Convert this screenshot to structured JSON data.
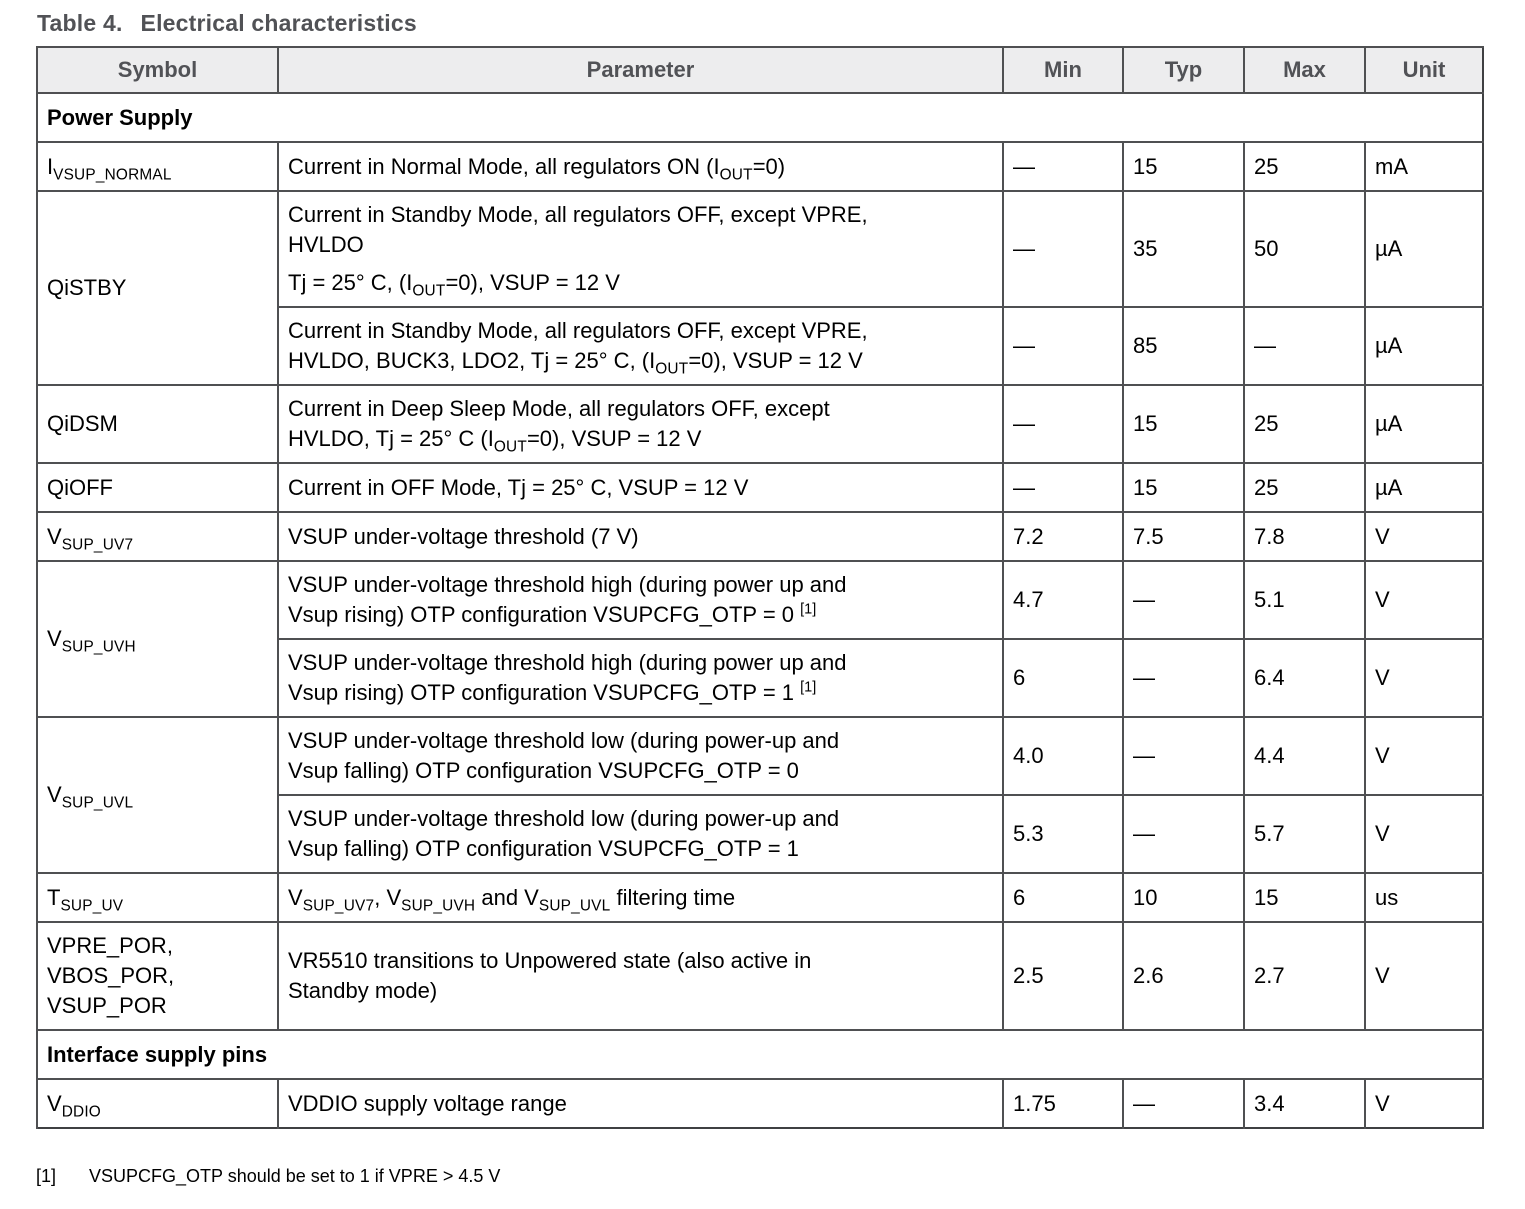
{
  "title": {
    "label": "Table 4.",
    "text": "Electrical characteristics"
  },
  "table": {
    "columns": [
      "Symbol",
      "Parameter",
      "Min",
      "Typ",
      "Max",
      "Unit"
    ],
    "rows": [
      {
        "section": "Power Supply"
      },
      {
        "symbol": [
          [
            {
              "t": "I"
            },
            {
              "sub": "VSUP_NORMAL"
            }
          ]
        ],
        "rowspan": 1,
        "parameter": [
          [
            {
              "t": "Current in Normal Mode, all regulators ON (I"
            },
            {
              "sub": "OUT"
            },
            {
              "t": "=0)"
            }
          ]
        ],
        "min": "—",
        "typ": "15",
        "max": "25",
        "unit": "mA"
      },
      {
        "symbol": [
          [
            {
              "t": "QiSTBY"
            }
          ]
        ],
        "rowspan": 2,
        "parameter": [
          [
            {
              "t": "Current in Standby Mode, all regulators OFF, except VPRE,"
            },
            {
              "br": true
            },
            {
              "t": "HVLDO"
            }
          ],
          [
            {
              "t": "Tj = 25° C, (I"
            },
            {
              "sub": "OUT"
            },
            {
              "t": "=0), VSUP = 12 V"
            }
          ]
        ],
        "min": "—",
        "typ": "35",
        "max": "50",
        "unit": "µA"
      },
      {
        "cont": true,
        "parameter": [
          [
            {
              "t": "Current in Standby Mode, all regulators OFF, except VPRE,"
            },
            {
              "br": true
            },
            {
              "t": "HVLDO, BUCK3, LDO2, Tj = 25° C, (I"
            },
            {
              "sub": "OUT"
            },
            {
              "t": "=0), VSUP = 12 V"
            }
          ]
        ],
        "min": "—",
        "typ": "85",
        "max": "—",
        "unit": "µA"
      },
      {
        "symbol": [
          [
            {
              "t": "QiDSM"
            }
          ]
        ],
        "rowspan": 1,
        "parameter": [
          [
            {
              "t": "Current in Deep Sleep Mode, all regulators OFF, except"
            },
            {
              "br": true
            },
            {
              "t": "HVLDO, Tj = 25° C (I"
            },
            {
              "sub": "OUT"
            },
            {
              "t": "=0), VSUP = 12 V"
            }
          ]
        ],
        "min": "—",
        "typ": "15",
        "max": "25",
        "unit": "µA"
      },
      {
        "symbol": [
          [
            {
              "t": "QiOFF"
            }
          ]
        ],
        "rowspan": 1,
        "parameter": [
          [
            {
              "t": "Current in OFF Mode, Tj = 25° C, VSUP = 12 V"
            }
          ]
        ],
        "min": "—",
        "typ": "15",
        "max": "25",
        "unit": "µA"
      },
      {
        "symbol": [
          [
            {
              "t": "V"
            },
            {
              "sub": "SUP_UV7"
            }
          ]
        ],
        "rowspan": 1,
        "parameter": [
          [
            {
              "t": "VSUP under-voltage threshold (7 V)"
            }
          ]
        ],
        "min": "7.2",
        "typ": "7.5",
        "max": "7.8",
        "unit": "V"
      },
      {
        "symbol": [
          [
            {
              "t": "V"
            },
            {
              "sub": "SUP_UVH"
            }
          ]
        ],
        "rowspan": 2,
        "parameter": [
          [
            {
              "t": "VSUP under-voltage threshold high (during power up and"
            },
            {
              "br": true
            },
            {
              "t": "Vsup rising) OTP configuration VSUPCFG_OTP = 0 "
            },
            {
              "sup": "[1]"
            }
          ]
        ],
        "min": "4.7",
        "typ": "—",
        "max": "5.1",
        "unit": "V"
      },
      {
        "cont": true,
        "parameter": [
          [
            {
              "t": "VSUP under-voltage threshold high (during power up and"
            },
            {
              "br": true
            },
            {
              "t": "Vsup rising) OTP configuration VSUPCFG_OTP = 1 "
            },
            {
              "sup": "[1]"
            }
          ]
        ],
        "min": "6",
        "typ": "—",
        "max": "6.4",
        "unit": "V"
      },
      {
        "symbol": [
          [
            {
              "t": "V"
            },
            {
              "sub": "SUP_UVL"
            }
          ]
        ],
        "rowspan": 2,
        "parameter": [
          [
            {
              "t": "VSUP under-voltage threshold low (during power-up and"
            },
            {
              "br": true
            },
            {
              "t": "Vsup falling) OTP configuration VSUPCFG_OTP = 0"
            }
          ]
        ],
        "min": "4.0",
        "typ": "—",
        "max": "4.4",
        "unit": "V"
      },
      {
        "cont": true,
        "parameter": [
          [
            {
              "t": "VSUP under-voltage threshold low (during power-up and"
            },
            {
              "br": true
            },
            {
              "t": "Vsup falling) OTP configuration VSUPCFG_OTP = 1"
            }
          ]
        ],
        "min": "5.3",
        "typ": "—",
        "max": "5.7",
        "unit": "V"
      },
      {
        "symbol": [
          [
            {
              "t": "T"
            },
            {
              "sub": "SUP_UV"
            }
          ]
        ],
        "rowspan": 1,
        "parameter": [
          [
            {
              "t": "V"
            },
            {
              "sub": "SUP_UV7"
            },
            {
              "t": ", V"
            },
            {
              "sub": "SUP_UVH"
            },
            {
              "t": " and V"
            },
            {
              "sub": "SUP_UVL"
            },
            {
              "t": " filtering time"
            }
          ]
        ],
        "min": "6",
        "typ": "10",
        "max": "15",
        "unit": "us"
      },
      {
        "symbol": [
          [
            {
              "t": "VPRE_POR,"
            },
            {
              "br": true
            },
            {
              "t": "VBOS_POR,"
            },
            {
              "br": true
            },
            {
              "t": "VSUP_POR"
            }
          ]
        ],
        "rowspan": 1,
        "parameter": [
          [
            {
              "t": "VR5510 transitions to Unpowered state (also active in"
            },
            {
              "br": true
            },
            {
              "t": "Standby mode)"
            }
          ]
        ],
        "min": "2.5",
        "typ": "2.6",
        "max": "2.7",
        "unit": "V"
      },
      {
        "section": "Interface supply pins"
      },
      {
        "symbol": [
          [
            {
              "t": "V"
            },
            {
              "sub": "DDIO"
            }
          ]
        ],
        "rowspan": 1,
        "parameter": [
          [
            {
              "t": "VDDIO supply voltage range"
            }
          ]
        ],
        "min": "1.75",
        "typ": "—",
        "max": "3.4",
        "unit": "V"
      }
    ]
  },
  "footnote": {
    "marker": "[1]",
    "text": "VSUPCFG_OTP should be set to 1 if VPRE > 4.5 V"
  },
  "colors": {
    "header_bg": "#ededee",
    "header_text": "#515256",
    "title_text": "#515256",
    "border": "#4f5052",
    "body_text": "#000000"
  }
}
